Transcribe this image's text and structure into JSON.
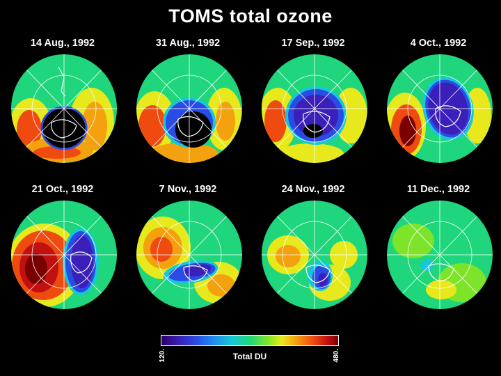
{
  "title": "TOMS total ozone",
  "panels": [
    {
      "date": "14 Aug., 1992"
    },
    {
      "date": "31 Aug., 1992"
    },
    {
      "date": "17 Sep., 1992"
    },
    {
      "date": "4 Oct., 1992"
    },
    {
      "date": "21 Oct., 1992"
    },
    {
      "date": "7 Nov., 1992"
    },
    {
      "date": "24 Nov., 1992"
    },
    {
      "date": "11 Dec., 1992"
    }
  ],
  "colorbar": {
    "label": "Total DU",
    "min": "120.",
    "max": "480.",
    "colors": [
      "#2a0066",
      "#3a1fb8",
      "#2a4ce6",
      "#1f8ff0",
      "#18c7d6",
      "#1fd67c",
      "#7ee42a",
      "#e7e91c",
      "#f4a10f",
      "#ef4b10",
      "#c01010",
      "#7a0000"
    ]
  }
}
